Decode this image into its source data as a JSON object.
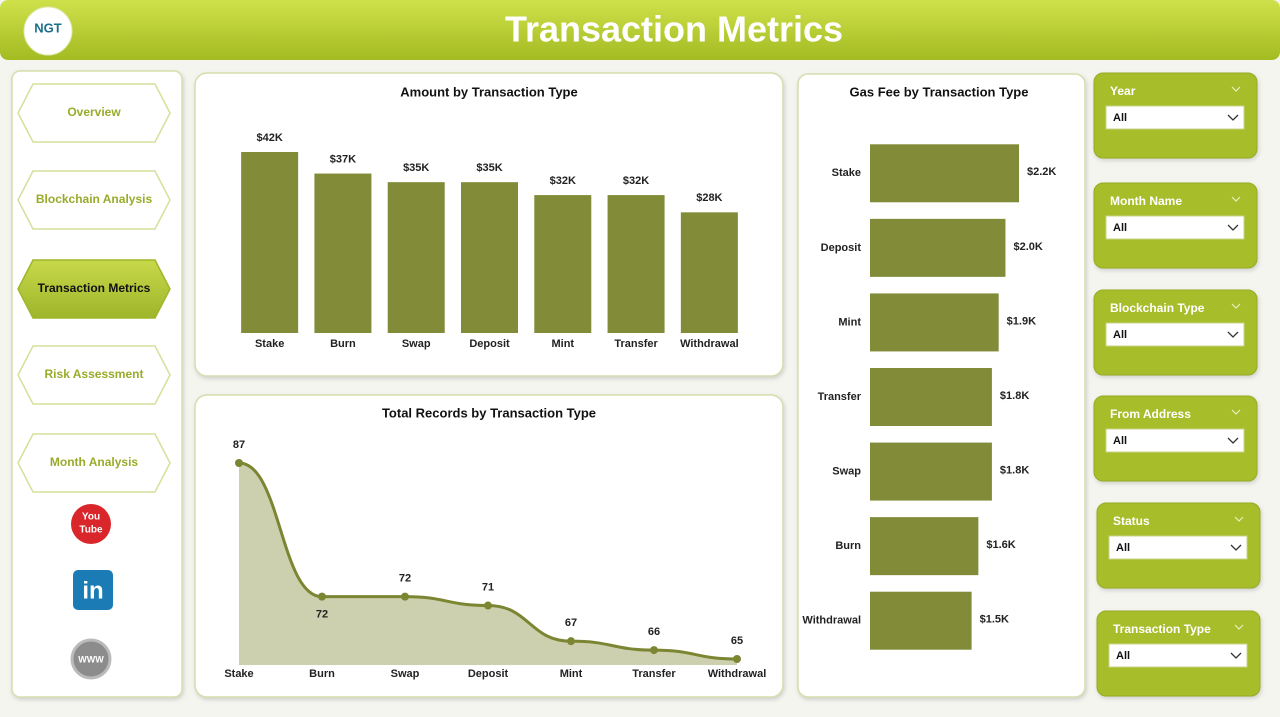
{
  "header": {
    "logo": "NGT",
    "title": "Transaction Metrics"
  },
  "nav": {
    "items": [
      "Overview",
      "Blockchain Analysis",
      "Transaction Metrics",
      "Risk Assessment",
      "Month Analysis"
    ],
    "active": 2
  },
  "social": {
    "youtube": [
      "You",
      "Tube"
    ],
    "linkedin": "in",
    "web": "WWW"
  },
  "filters": [
    {
      "label": "Year",
      "value": "All"
    },
    {
      "label": "Month Name",
      "value": "All"
    },
    {
      "label": "Blockchain Type",
      "value": "All"
    },
    {
      "label": "From Address",
      "value": "All"
    },
    {
      "label": "Status",
      "value": "All"
    },
    {
      "label": "Transaction Type",
      "value": "All"
    }
  ],
  "chart_data": [
    {
      "type": "bar",
      "title": "Amount by Transaction Type",
      "categories": [
        "Stake",
        "Burn",
        "Swap",
        "Deposit",
        "Mint",
        "Transfer",
        "Withdrawal"
      ],
      "values": [
        42000,
        37000,
        35000,
        35000,
        32000,
        32000,
        28000
      ],
      "value_labels": [
        "$42K",
        "$37K",
        "$35K",
        "$35K",
        "$32K",
        "$32K",
        "$28K"
      ],
      "color": "#818b38"
    },
    {
      "type": "bar",
      "orientation": "horizontal",
      "title": "Gas Fee by Transaction Type",
      "categories": [
        "Stake",
        "Deposit",
        "Mint",
        "Transfer",
        "Swap",
        "Burn",
        "Withdrawal"
      ],
      "values": [
        2200,
        2000,
        1900,
        1800,
        1800,
        1600,
        1500
      ],
      "value_labels": [
        "$2.2K",
        "$2.0K",
        "$1.9K",
        "$1.8K",
        "$1.8K",
        "$1.6K",
        "$1.5K"
      ],
      "color": "#818b38"
    },
    {
      "type": "area",
      "title": "Total Records by Transaction Type",
      "categories": [
        "Stake",
        "Burn",
        "Swap",
        "Deposit",
        "Mint",
        "Transfer",
        "Withdrawal"
      ],
      "values": [
        87,
        72,
        72,
        71,
        67,
        66,
        65
      ],
      "color": "#7b8532",
      "fill_color": "#cdd0ae"
    }
  ]
}
